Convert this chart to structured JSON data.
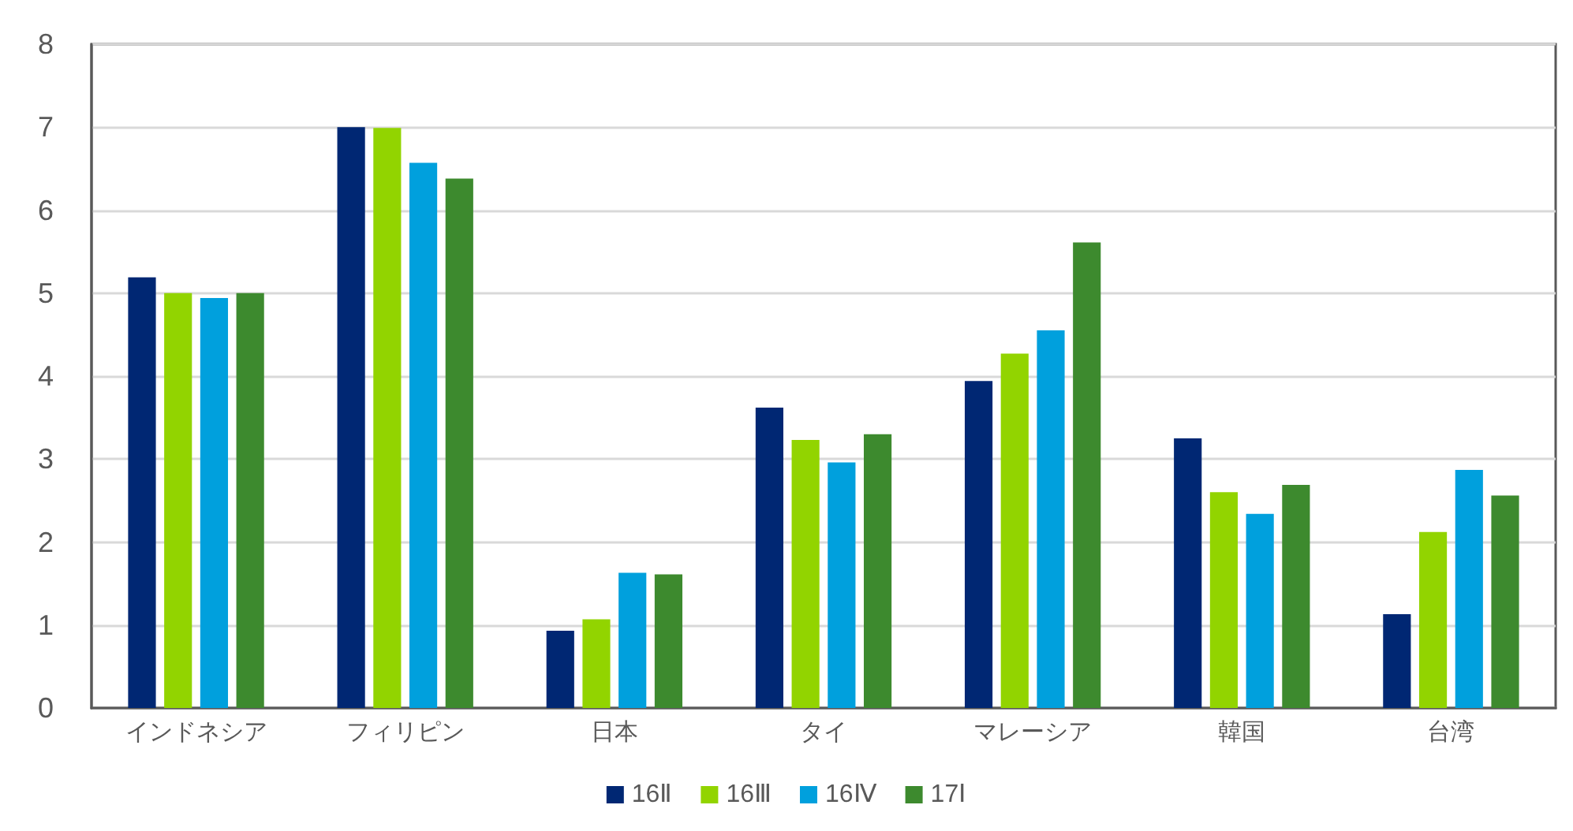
{
  "chart_data": {
    "type": "bar",
    "categories": [
      "インドネシア",
      "フィリピン",
      "日本",
      "タイ",
      "マレーシア",
      "韓国",
      "台湾"
    ],
    "series": [
      {
        "name": "16Ⅱ",
        "color": "#002773",
        "values": [
          5.19,
          7.0,
          0.93,
          3.62,
          3.94,
          3.25,
          1.13
        ]
      },
      {
        "name": "16Ⅲ",
        "color": "#92d400",
        "values": [
          5.0,
          6.99,
          1.07,
          3.23,
          4.27,
          2.6,
          2.12
        ]
      },
      {
        "name": "16Ⅳ",
        "color": "#00a0dd",
        "values": [
          4.94,
          6.57,
          1.63,
          2.96,
          4.55,
          2.34,
          2.87
        ]
      },
      {
        "name": "17Ⅰ",
        "color": "#3d8a2e",
        "values": [
          5.0,
          6.38,
          1.61,
          3.3,
          5.61,
          2.69,
          2.56
        ]
      }
    ],
    "ylim": [
      0,
      8
    ],
    "yticks": [
      0,
      1,
      2,
      3,
      4,
      5,
      6,
      7,
      8
    ],
    "grid": "y",
    "legend": "bottom"
  }
}
